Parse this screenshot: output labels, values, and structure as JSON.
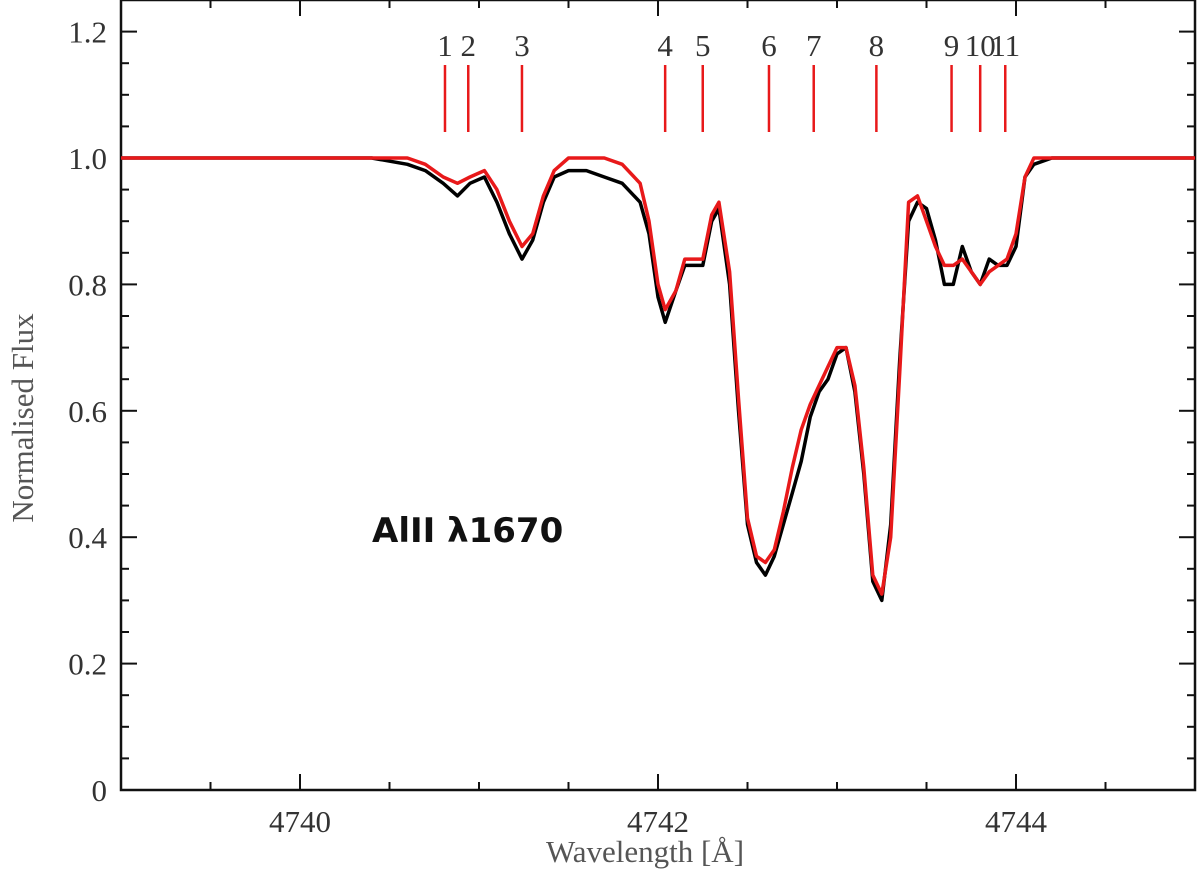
{
  "chart_data": {
    "type": "line",
    "xlabel": "Wavelength [Å]",
    "ylabel": "Normalised Flux",
    "annotation": "AlII λ1670",
    "xlim": [
      4739.0,
      4745.0
    ],
    "ylim": [
      0.0,
      1.25
    ],
    "x_ticks": [
      4740,
      4742,
      4744
    ],
    "x_tick_labels": [
      "4740",
      "4742",
      "4744"
    ],
    "y_ticks": [
      0,
      0.2,
      0.4,
      0.6,
      0.8,
      1.0,
      1.2
    ],
    "y_tick_labels": [
      "0",
      "0.2",
      "0.4",
      "0.6",
      "0.8",
      "1.0",
      "1.2"
    ],
    "grid": false,
    "components": [
      {
        "label": "1",
        "x": 4740.81
      },
      {
        "label": "2",
        "x": 4740.94
      },
      {
        "label": "3",
        "x": 4741.24
      },
      {
        "label": "4",
        "x": 4742.04
      },
      {
        "label": "5",
        "x": 4742.25
      },
      {
        "label": "6",
        "x": 4742.62
      },
      {
        "label": "7",
        "x": 4742.87
      },
      {
        "label": "8",
        "x": 4743.22
      },
      {
        "label": "9",
        "x": 4743.64
      },
      {
        "label": "10",
        "x": 4743.8
      },
      {
        "label": "11",
        "x": 4743.94
      }
    ],
    "series": [
      {
        "color": "#000000",
        "x": [
          4739.0,
          4739.2,
          4739.4,
          4739.6,
          4739.8,
          4740.0,
          4740.2,
          4740.4,
          4740.6,
          4740.7,
          4740.8,
          4740.88,
          4740.95,
          4741.03,
          4741.1,
          4741.17,
          4741.24,
          4741.3,
          4741.36,
          4741.42,
          4741.5,
          4741.6,
          4741.7,
          4741.8,
          4741.9,
          4741.95,
          4742.0,
          4742.04,
          4742.1,
          4742.15,
          4742.2,
          4742.25,
          4742.3,
          4742.34,
          4742.4,
          4742.45,
          4742.5,
          4742.55,
          4742.6,
          4742.65,
          4742.7,
          4742.75,
          4742.8,
          4742.85,
          4742.9,
          4742.95,
          4743.0,
          4743.05,
          4743.1,
          4743.15,
          4743.2,
          4743.25,
          4743.3,
          4743.35,
          4743.4,
          4743.45,
          4743.5,
          4743.55,
          4743.6,
          4743.65,
          4743.7,
          4743.75,
          4743.8,
          4743.85,
          4743.9,
          4743.95,
          4744.0,
          4744.05,
          4744.1,
          4744.2,
          4744.4,
          4744.6,
          4744.8,
          4745.0
        ],
        "y": [
          1.0,
          1.0,
          1.0,
          1.0,
          1.0,
          1.0,
          1.0,
          1.0,
          0.99,
          0.98,
          0.96,
          0.94,
          0.96,
          0.97,
          0.93,
          0.88,
          0.84,
          0.87,
          0.93,
          0.97,
          0.98,
          0.98,
          0.97,
          0.96,
          0.93,
          0.88,
          0.78,
          0.74,
          0.79,
          0.83,
          0.83,
          0.83,
          0.9,
          0.92,
          0.8,
          0.6,
          0.42,
          0.36,
          0.34,
          0.37,
          0.42,
          0.47,
          0.52,
          0.59,
          0.63,
          0.65,
          0.69,
          0.7,
          0.63,
          0.5,
          0.33,
          0.3,
          0.42,
          0.68,
          0.9,
          0.93,
          0.92,
          0.87,
          0.8,
          0.8,
          0.86,
          0.82,
          0.8,
          0.84,
          0.83,
          0.83,
          0.86,
          0.97,
          0.99,
          1.0,
          1.0,
          1.0,
          1.0,
          1.0
        ]
      },
      {
        "color": "#e8191a",
        "x": [
          4739.0,
          4739.2,
          4739.4,
          4739.6,
          4739.8,
          4740.0,
          4740.2,
          4740.4,
          4740.6,
          4740.7,
          4740.8,
          4740.88,
          4740.95,
          4741.03,
          4741.1,
          4741.17,
          4741.24,
          4741.3,
          4741.36,
          4741.42,
          4741.5,
          4741.6,
          4741.7,
          4741.8,
          4741.9,
          4741.95,
          4742.0,
          4742.04,
          4742.1,
          4742.15,
          4742.2,
          4742.25,
          4742.3,
          4742.34,
          4742.4,
          4742.45,
          4742.5,
          4742.55,
          4742.6,
          4742.65,
          4742.7,
          4742.75,
          4742.8,
          4742.85,
          4742.9,
          4742.95,
          4743.0,
          4743.05,
          4743.1,
          4743.15,
          4743.2,
          4743.25,
          4743.3,
          4743.35,
          4743.4,
          4743.45,
          4743.5,
          4743.55,
          4743.6,
          4743.65,
          4743.7,
          4743.75,
          4743.8,
          4743.85,
          4743.9,
          4743.95,
          4744.0,
          4744.05,
          4744.1,
          4744.2,
          4744.4,
          4744.6,
          4744.8,
          4745.0
        ],
        "y": [
          1.0,
          1.0,
          1.0,
          1.0,
          1.0,
          1.0,
          1.0,
          1.0,
          1.0,
          0.99,
          0.97,
          0.96,
          0.97,
          0.98,
          0.95,
          0.9,
          0.86,
          0.88,
          0.94,
          0.98,
          1.0,
          1.0,
          1.0,
          0.99,
          0.96,
          0.9,
          0.8,
          0.76,
          0.79,
          0.84,
          0.84,
          0.84,
          0.91,
          0.93,
          0.82,
          0.62,
          0.43,
          0.37,
          0.36,
          0.38,
          0.44,
          0.51,
          0.57,
          0.61,
          0.64,
          0.67,
          0.7,
          0.7,
          0.64,
          0.51,
          0.34,
          0.31,
          0.4,
          0.66,
          0.93,
          0.94,
          0.9,
          0.86,
          0.83,
          0.83,
          0.84,
          0.82,
          0.8,
          0.82,
          0.83,
          0.84,
          0.88,
          0.97,
          1.0,
          1.0,
          1.0,
          1.0,
          1.0,
          1.0
        ]
      }
    ]
  }
}
